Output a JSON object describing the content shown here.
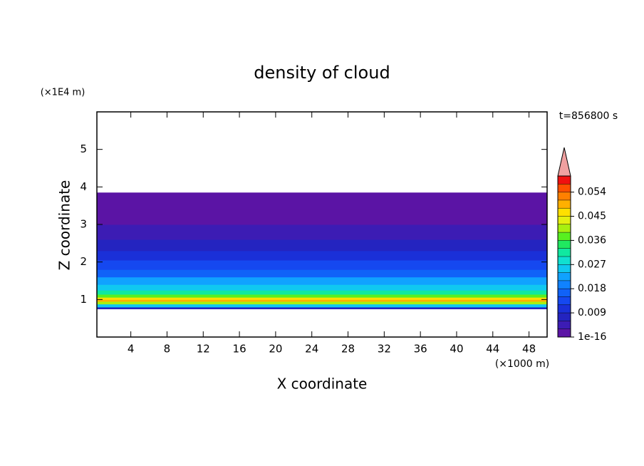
{
  "chart_data": {
    "type": "contour",
    "title": "density of cloud",
    "x_label": "X coordinate",
    "x_unit": "(×1000 m)",
    "y_label": "Z coordinate",
    "y_unit": "(×1E4 m)",
    "time_label": "t=856800 s",
    "xlim": [
      0.25,
      50
    ],
    "xticks": [
      4,
      8,
      12,
      16,
      20,
      24,
      28,
      32,
      36,
      40,
      44,
      48
    ],
    "ylim": [
      0,
      6
    ],
    "yticks": [
      1,
      2,
      3,
      4,
      5
    ],
    "z_bins": [
      0.75,
      0.8,
      0.88,
      0.95,
      1.0,
      1.06,
      1.14,
      1.25,
      1.4,
      1.6,
      1.8,
      2.05,
      2.3,
      2.6,
      3.0,
      3.4,
      3.85
    ],
    "values": [
      0.008,
      0.026,
      0.042,
      0.05,
      0.046,
      0.038,
      0.031,
      0.026,
      0.022,
      0.018,
      0.014,
      0.01,
      0.007,
      0.004,
      0.002,
      0.0005
    ],
    "levels": [
      1e-16,
      0.003,
      0.006,
      0.009,
      0.012,
      0.015,
      0.018,
      0.021,
      0.024,
      0.027,
      0.03,
      0.033,
      0.036,
      0.039,
      0.042,
      0.045,
      0.048,
      0.051,
      0.054,
      0.057,
      0.06
    ],
    "colors": [
      "#5b14a5",
      "#3c1cb4",
      "#2424c0",
      "#1a30d8",
      "#1548f0",
      "#1062f8",
      "#1082ff",
      "#10a2ff",
      "#10c8f0",
      "#10e0d0",
      "#10e8a0",
      "#20e860",
      "#58f020",
      "#a8f010",
      "#e4f010",
      "#ffe000",
      "#ffb000",
      "#ff8000",
      "#ff5000",
      "#f01010"
    ],
    "extend_color": "#f0a0a0",
    "colorbar_ticks": [
      {
        "value": 1e-16,
        "label": "1e-16"
      },
      0.009,
      0.018,
      0.027,
      0.036,
      0.045,
      0.054
    ]
  }
}
